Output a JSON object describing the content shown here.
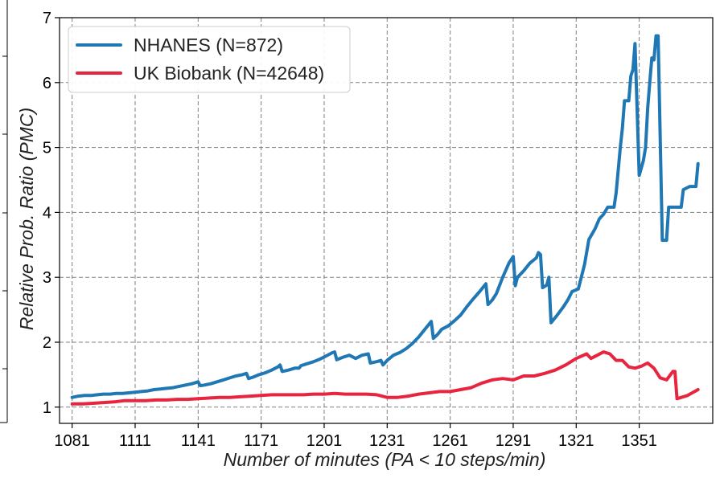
{
  "chart_data": {
    "type": "line",
    "xlabel": "Number of minutes (PA < 10 steps/min)",
    "ylabel": "Relative Prob. Ratio (PMC)",
    "xlim": [
      1075,
      1386
    ],
    "ylim": [
      0.75,
      7
    ],
    "xticks": [
      1081,
      1111,
      1141,
      1171,
      1201,
      1231,
      1261,
      1291,
      1321,
      1351
    ],
    "yticks": [
      1,
      2,
      3,
      4,
      5,
      6,
      7
    ],
    "grid": true,
    "legend_position": "top-left",
    "series": [
      {
        "name": "NHANES (N=872)",
        "color": "#1f77b4",
        "points": [
          [
            1081,
            1.15
          ],
          [
            1084,
            1.17
          ],
          [
            1087,
            1.18
          ],
          [
            1090,
            1.18
          ],
          [
            1093,
            1.19
          ],
          [
            1096,
            1.2
          ],
          [
            1099,
            1.2
          ],
          [
            1102,
            1.21
          ],
          [
            1105,
            1.21
          ],
          [
            1108,
            1.22
          ],
          [
            1111,
            1.23
          ],
          [
            1114,
            1.24
          ],
          [
            1117,
            1.25
          ],
          [
            1120,
            1.27
          ],
          [
            1123,
            1.28
          ],
          [
            1126,
            1.29
          ],
          [
            1129,
            1.3
          ],
          [
            1132,
            1.32
          ],
          [
            1135,
            1.34
          ],
          [
            1138,
            1.36
          ],
          [
            1141,
            1.39
          ],
          [
            1142,
            1.33
          ],
          [
            1144,
            1.34
          ],
          [
            1147,
            1.36
          ],
          [
            1150,
            1.39
          ],
          [
            1153,
            1.42
          ],
          [
            1156,
            1.45
          ],
          [
            1159,
            1.48
          ],
          [
            1162,
            1.5
          ],
          [
            1164,
            1.52
          ],
          [
            1165,
            1.44
          ],
          [
            1167,
            1.46
          ],
          [
            1170,
            1.5
          ],
          [
            1173,
            1.53
          ],
          [
            1176,
            1.57
          ],
          [
            1179,
            1.62
          ],
          [
            1180,
            1.65
          ],
          [
            1181,
            1.55
          ],
          [
            1184,
            1.57
          ],
          [
            1187,
            1.6
          ],
          [
            1189,
            1.6
          ],
          [
            1190,
            1.64
          ],
          [
            1193,
            1.67
          ],
          [
            1196,
            1.7
          ],
          [
            1199,
            1.74
          ],
          [
            1202,
            1.79
          ],
          [
            1205,
            1.84
          ],
          [
            1206,
            1.85
          ],
          [
            1207,
            1.73
          ],
          [
            1210,
            1.77
          ],
          [
            1213,
            1.8
          ],
          [
            1216,
            1.75
          ],
          [
            1219,
            1.8
          ],
          [
            1222,
            1.82
          ],
          [
            1223,
            1.68
          ],
          [
            1226,
            1.7
          ],
          [
            1228,
            1.72
          ],
          [
            1229,
            1.65
          ],
          [
            1231,
            1.72
          ],
          [
            1234,
            1.8
          ],
          [
            1237,
            1.84
          ],
          [
            1240,
            1.9
          ],
          [
            1243,
            1.98
          ],
          [
            1246,
            2.08
          ],
          [
            1249,
            2.2
          ],
          [
            1252,
            2.32
          ],
          [
            1253,
            2.06
          ],
          [
            1255,
            2.12
          ],
          [
            1257,
            2.2
          ],
          [
            1260,
            2.25
          ],
          [
            1263,
            2.33
          ],
          [
            1266,
            2.42
          ],
          [
            1269,
            2.55
          ],
          [
            1272,
            2.67
          ],
          [
            1275,
            2.78
          ],
          [
            1278,
            2.9
          ],
          [
            1279,
            2.58
          ],
          [
            1281,
            2.65
          ],
          [
            1283,
            2.75
          ],
          [
            1286,
            3.0
          ],
          [
            1289,
            3.22
          ],
          [
            1291,
            3.32
          ],
          [
            1292,
            2.87
          ],
          [
            1293,
            3.0
          ],
          [
            1296,
            3.1
          ],
          [
            1299,
            3.22
          ],
          [
            1302,
            3.3
          ],
          [
            1303,
            3.38
          ],
          [
            1304,
            3.35
          ],
          [
            1305,
            2.84
          ],
          [
            1307,
            2.88
          ],
          [
            1308,
            3.0
          ],
          [
            1309,
            2.3
          ],
          [
            1312,
            2.42
          ],
          [
            1315,
            2.55
          ],
          [
            1317,
            2.65
          ],
          [
            1319,
            2.78
          ],
          [
            1322,
            2.82
          ],
          [
            1325,
            3.2
          ],
          [
            1327,
            3.58
          ],
          [
            1330,
            3.75
          ],
          [
            1332,
            3.9
          ],
          [
            1334,
            3.97
          ],
          [
            1336,
            4.08
          ],
          [
            1339,
            4.08
          ],
          [
            1340,
            4.3
          ],
          [
            1342,
            5.0
          ],
          [
            1343,
            5.3
          ],
          [
            1344,
            5.72
          ],
          [
            1346,
            5.72
          ],
          [
            1347,
            6.1
          ],
          [
            1348,
            6.2
          ],
          [
            1349,
            6.6
          ],
          [
            1351,
            4.57
          ],
          [
            1353,
            4.8
          ],
          [
            1354,
            5.0
          ],
          [
            1355,
            5.6
          ],
          [
            1356,
            6.0
          ],
          [
            1357,
            6.38
          ],
          [
            1358,
            6.35
          ],
          [
            1359,
            6.72
          ],
          [
            1360,
            6.72
          ],
          [
            1362,
            3.57
          ],
          [
            1364,
            3.57
          ],
          [
            1365,
            4.08
          ],
          [
            1368,
            4.08
          ],
          [
            1371,
            4.08
          ],
          [
            1372,
            4.35
          ],
          [
            1375,
            4.4
          ],
          [
            1378,
            4.4
          ],
          [
            1379,
            4.75
          ]
        ]
      },
      {
        "name": "UK Biobank (N=42648)",
        "color": "#e8253f",
        "points": [
          [
            1081,
            1.05
          ],
          [
            1086,
            1.05
          ],
          [
            1091,
            1.06
          ],
          [
            1096,
            1.07
          ],
          [
            1101,
            1.08
          ],
          [
            1106,
            1.1
          ],
          [
            1111,
            1.1
          ],
          [
            1116,
            1.1
          ],
          [
            1121,
            1.11
          ],
          [
            1126,
            1.11
          ],
          [
            1131,
            1.12
          ],
          [
            1136,
            1.12
          ],
          [
            1141,
            1.13
          ],
          [
            1146,
            1.14
          ],
          [
            1151,
            1.15
          ],
          [
            1156,
            1.15
          ],
          [
            1161,
            1.16
          ],
          [
            1166,
            1.17
          ],
          [
            1171,
            1.18
          ],
          [
            1176,
            1.19
          ],
          [
            1181,
            1.19
          ],
          [
            1186,
            1.19
          ],
          [
            1191,
            1.19
          ],
          [
            1196,
            1.2
          ],
          [
            1201,
            1.2
          ],
          [
            1206,
            1.21
          ],
          [
            1211,
            1.2
          ],
          [
            1216,
            1.2
          ],
          [
            1221,
            1.2
          ],
          [
            1226,
            1.19
          ],
          [
            1231,
            1.15
          ],
          [
            1236,
            1.15
          ],
          [
            1241,
            1.17
          ],
          [
            1246,
            1.2
          ],
          [
            1251,
            1.22
          ],
          [
            1256,
            1.24
          ],
          [
            1261,
            1.24
          ],
          [
            1266,
            1.27
          ],
          [
            1271,
            1.3
          ],
          [
            1276,
            1.37
          ],
          [
            1281,
            1.42
          ],
          [
            1286,
            1.44
          ],
          [
            1291,
            1.42
          ],
          [
            1296,
            1.48
          ],
          [
            1301,
            1.48
          ],
          [
            1306,
            1.52
          ],
          [
            1311,
            1.57
          ],
          [
            1316,
            1.65
          ],
          [
            1321,
            1.75
          ],
          [
            1326,
            1.82
          ],
          [
            1328,
            1.75
          ],
          [
            1331,
            1.8
          ],
          [
            1334,
            1.85
          ],
          [
            1337,
            1.82
          ],
          [
            1340,
            1.72
          ],
          [
            1343,
            1.72
          ],
          [
            1346,
            1.62
          ],
          [
            1349,
            1.6
          ],
          [
            1352,
            1.63
          ],
          [
            1355,
            1.68
          ],
          [
            1358,
            1.6
          ],
          [
            1361,
            1.45
          ],
          [
            1364,
            1.42
          ],
          [
            1367,
            1.55
          ],
          [
            1368,
            1.55
          ],
          [
            1369,
            1.13
          ],
          [
            1374,
            1.18
          ],
          [
            1379,
            1.27
          ]
        ]
      }
    ]
  }
}
